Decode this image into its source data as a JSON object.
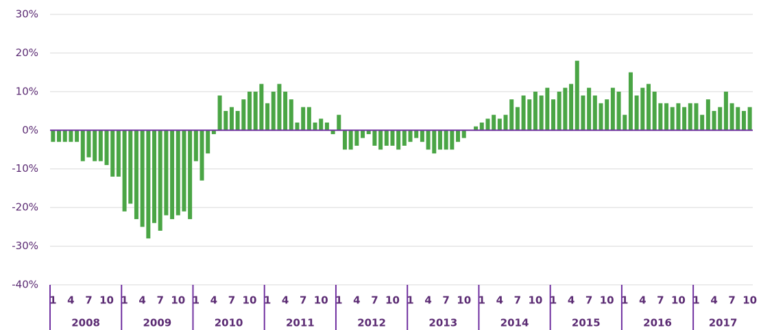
{
  "chart_data": {
    "type": "bar",
    "categories": [
      "1",
      null,
      null,
      "4",
      null,
      null,
      "7",
      null,
      null,
      "10",
      null,
      null,
      "1",
      null,
      null,
      "4",
      null,
      null,
      "7",
      null,
      null,
      "10",
      null,
      null,
      "1",
      null,
      null,
      "4",
      null,
      null,
      "7",
      null,
      null,
      "10",
      null,
      null,
      "1",
      null,
      null,
      "4",
      null,
      null,
      "7",
      null,
      null,
      "10",
      null,
      null,
      "1",
      null,
      null,
      "4",
      null,
      null,
      "7",
      null,
      null,
      "10",
      null,
      null,
      "1",
      null,
      null,
      "4",
      null,
      null,
      "7",
      null,
      null,
      "10",
      null,
      null,
      "1",
      null,
      null,
      "4",
      null,
      null,
      "7",
      null,
      null,
      "10",
      null,
      null,
      "1",
      null,
      null,
      "4",
      null,
      null,
      "7",
      null,
      null,
      "10",
      null,
      null,
      "1",
      null,
      null,
      "4",
      null,
      null,
      "7",
      null,
      null,
      "10",
      null,
      null,
      "1",
      null,
      null,
      "4",
      null,
      null,
      "7",
      null,
      null,
      "10"
    ],
    "groups": [
      "2008",
      "2009",
      "2010",
      "2011",
      "2012",
      "2013",
      "2014",
      "2015",
      "2016",
      "2017"
    ],
    "values": [
      -3,
      -3,
      -3,
      -3,
      -3,
      -8,
      -7,
      -8,
      -8,
      -9,
      -12,
      -12,
      -21,
      -19,
      -23,
      -25,
      -28,
      -24,
      -26,
      -22,
      -23,
      -22,
      -21,
      -23,
      -8,
      -13,
      -6,
      -1,
      9,
      5,
      6,
      5,
      8,
      10,
      10,
      12,
      7,
      10,
      12,
      10,
      8,
      2,
      6,
      6,
      2,
      3,
      2,
      -1,
      4,
      -5,
      -5,
      -4,
      -2,
      -1,
      -4,
      -5,
      -4,
      -4,
      -5,
      -4,
      -3,
      -2,
      -3,
      -5,
      -6,
      -5,
      -5,
      -5,
      -3,
      -2,
      0,
      1,
      2,
      3,
      4,
      3,
      4,
      8,
      6,
      9,
      8,
      10,
      9,
      11,
      8,
      10,
      11,
      12,
      18,
      9,
      11,
      9,
      7,
      8,
      11,
      10,
      4,
      15,
      9,
      11,
      12,
      10,
      7,
      7,
      6,
      7,
      6,
      7,
      7,
      4,
      8,
      5,
      6,
      10,
      7,
      6,
      5,
      6
    ],
    "color": "#4aa545",
    "ylim": [
      -40,
      30
    ],
    "yticks": [
      {
        "value": -40,
        "label": "-40%"
      },
      {
        "value": -30,
        "label": "-30%"
      },
      {
        "value": -20,
        "label": "-20%"
      },
      {
        "value": -10,
        "label": "-10%"
      },
      {
        "value": 0,
        "label": "0%"
      },
      {
        "value": 10,
        "label": "10%"
      },
      {
        "value": 20,
        "label": "20%"
      },
      {
        "value": 30,
        "label": "30%"
      }
    ],
    "grid": true
  }
}
